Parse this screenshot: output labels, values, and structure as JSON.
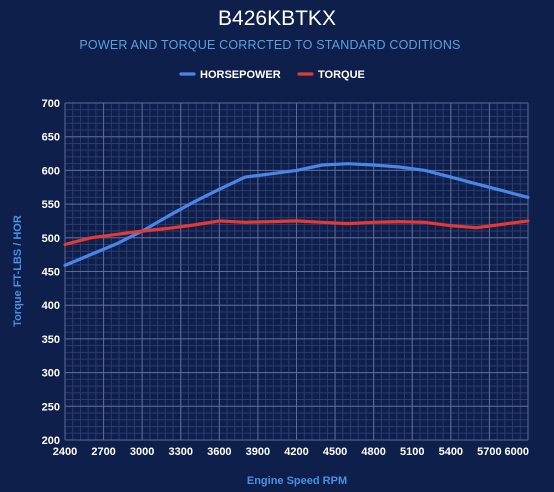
{
  "chart_data": {
    "type": "line",
    "title": "B426KBTKX",
    "subtitle": "POWER AND TORQUE CORRCTED TO STANDARD CODITIONS",
    "xlabel": "Engine Speed RPM",
    "ylabel": "Torque FT-LBS / HOR",
    "xlim": [
      2400,
      6000
    ],
    "ylim": [
      200,
      700
    ],
    "x_ticks": [
      2400,
      2700,
      3000,
      3300,
      3600,
      3900,
      4200,
      4500,
      4800,
      5100,
      5400,
      5700,
      6000
    ],
    "y_ticks": [
      200,
      250,
      300,
      350,
      400,
      450,
      500,
      550,
      600,
      650,
      700
    ],
    "grid": true,
    "legend_position": "top-center",
    "x": [
      2400,
      2600,
      2800,
      3000,
      3200,
      3400,
      3600,
      3800,
      4000,
      4200,
      4400,
      4600,
      4800,
      5000,
      5200,
      5400,
      5600,
      5800,
      6000
    ],
    "series": [
      {
        "name": "HORSEPOWER",
        "color": "#4a86e8",
        "values": [
          459,
          475,
          491,
          510,
          532,
          553,
          572,
          590,
          595,
          600,
          608,
          610,
          608,
          605,
          600,
          590,
          580,
          570,
          560
        ]
      },
      {
        "name": "TORQUE",
        "color": "#e53935",
        "values": [
          490,
          500,
          505,
          510,
          514,
          519,
          525,
          523,
          524,
          525,
          523,
          521,
          523,
          524,
          523,
          518,
          515,
          520,
          525
        ]
      }
    ]
  }
}
